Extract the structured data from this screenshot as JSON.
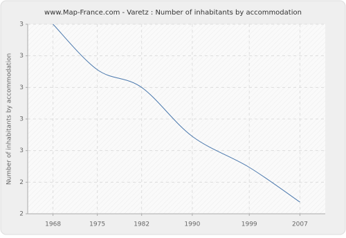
{
  "chart_data": {
    "type": "line",
    "title": "www.Map-France.com - Varetz : Number of inhabitants by accommodation",
    "y_label": "Number of inhabitants by accommodation",
    "x": [
      1968,
      1975,
      1982,
      1990,
      1999,
      2007
    ],
    "values": [
      3.0,
      2.856,
      2.8,
      2.645,
      2.547,
      2.437
    ],
    "color": "#4a78ad",
    "xlim": [
      1964,
      2011
    ],
    "xticks": [
      1968,
      1975,
      1982,
      1990,
      1999,
      2007
    ],
    "ylim": [
      2.4,
      3.0
    ],
    "yticks": [
      {
        "value": 2.4,
        "label": "2"
      },
      {
        "value": 2.5,
        "label": "2"
      },
      {
        "value": 2.6,
        "label": "3"
      },
      {
        "value": 2.7,
        "label": "3"
      },
      {
        "value": 2.8,
        "label": "3"
      },
      {
        "value": 2.9,
        "label": "3"
      },
      {
        "value": 3.0,
        "label": "3"
      }
    ],
    "grid": true
  }
}
